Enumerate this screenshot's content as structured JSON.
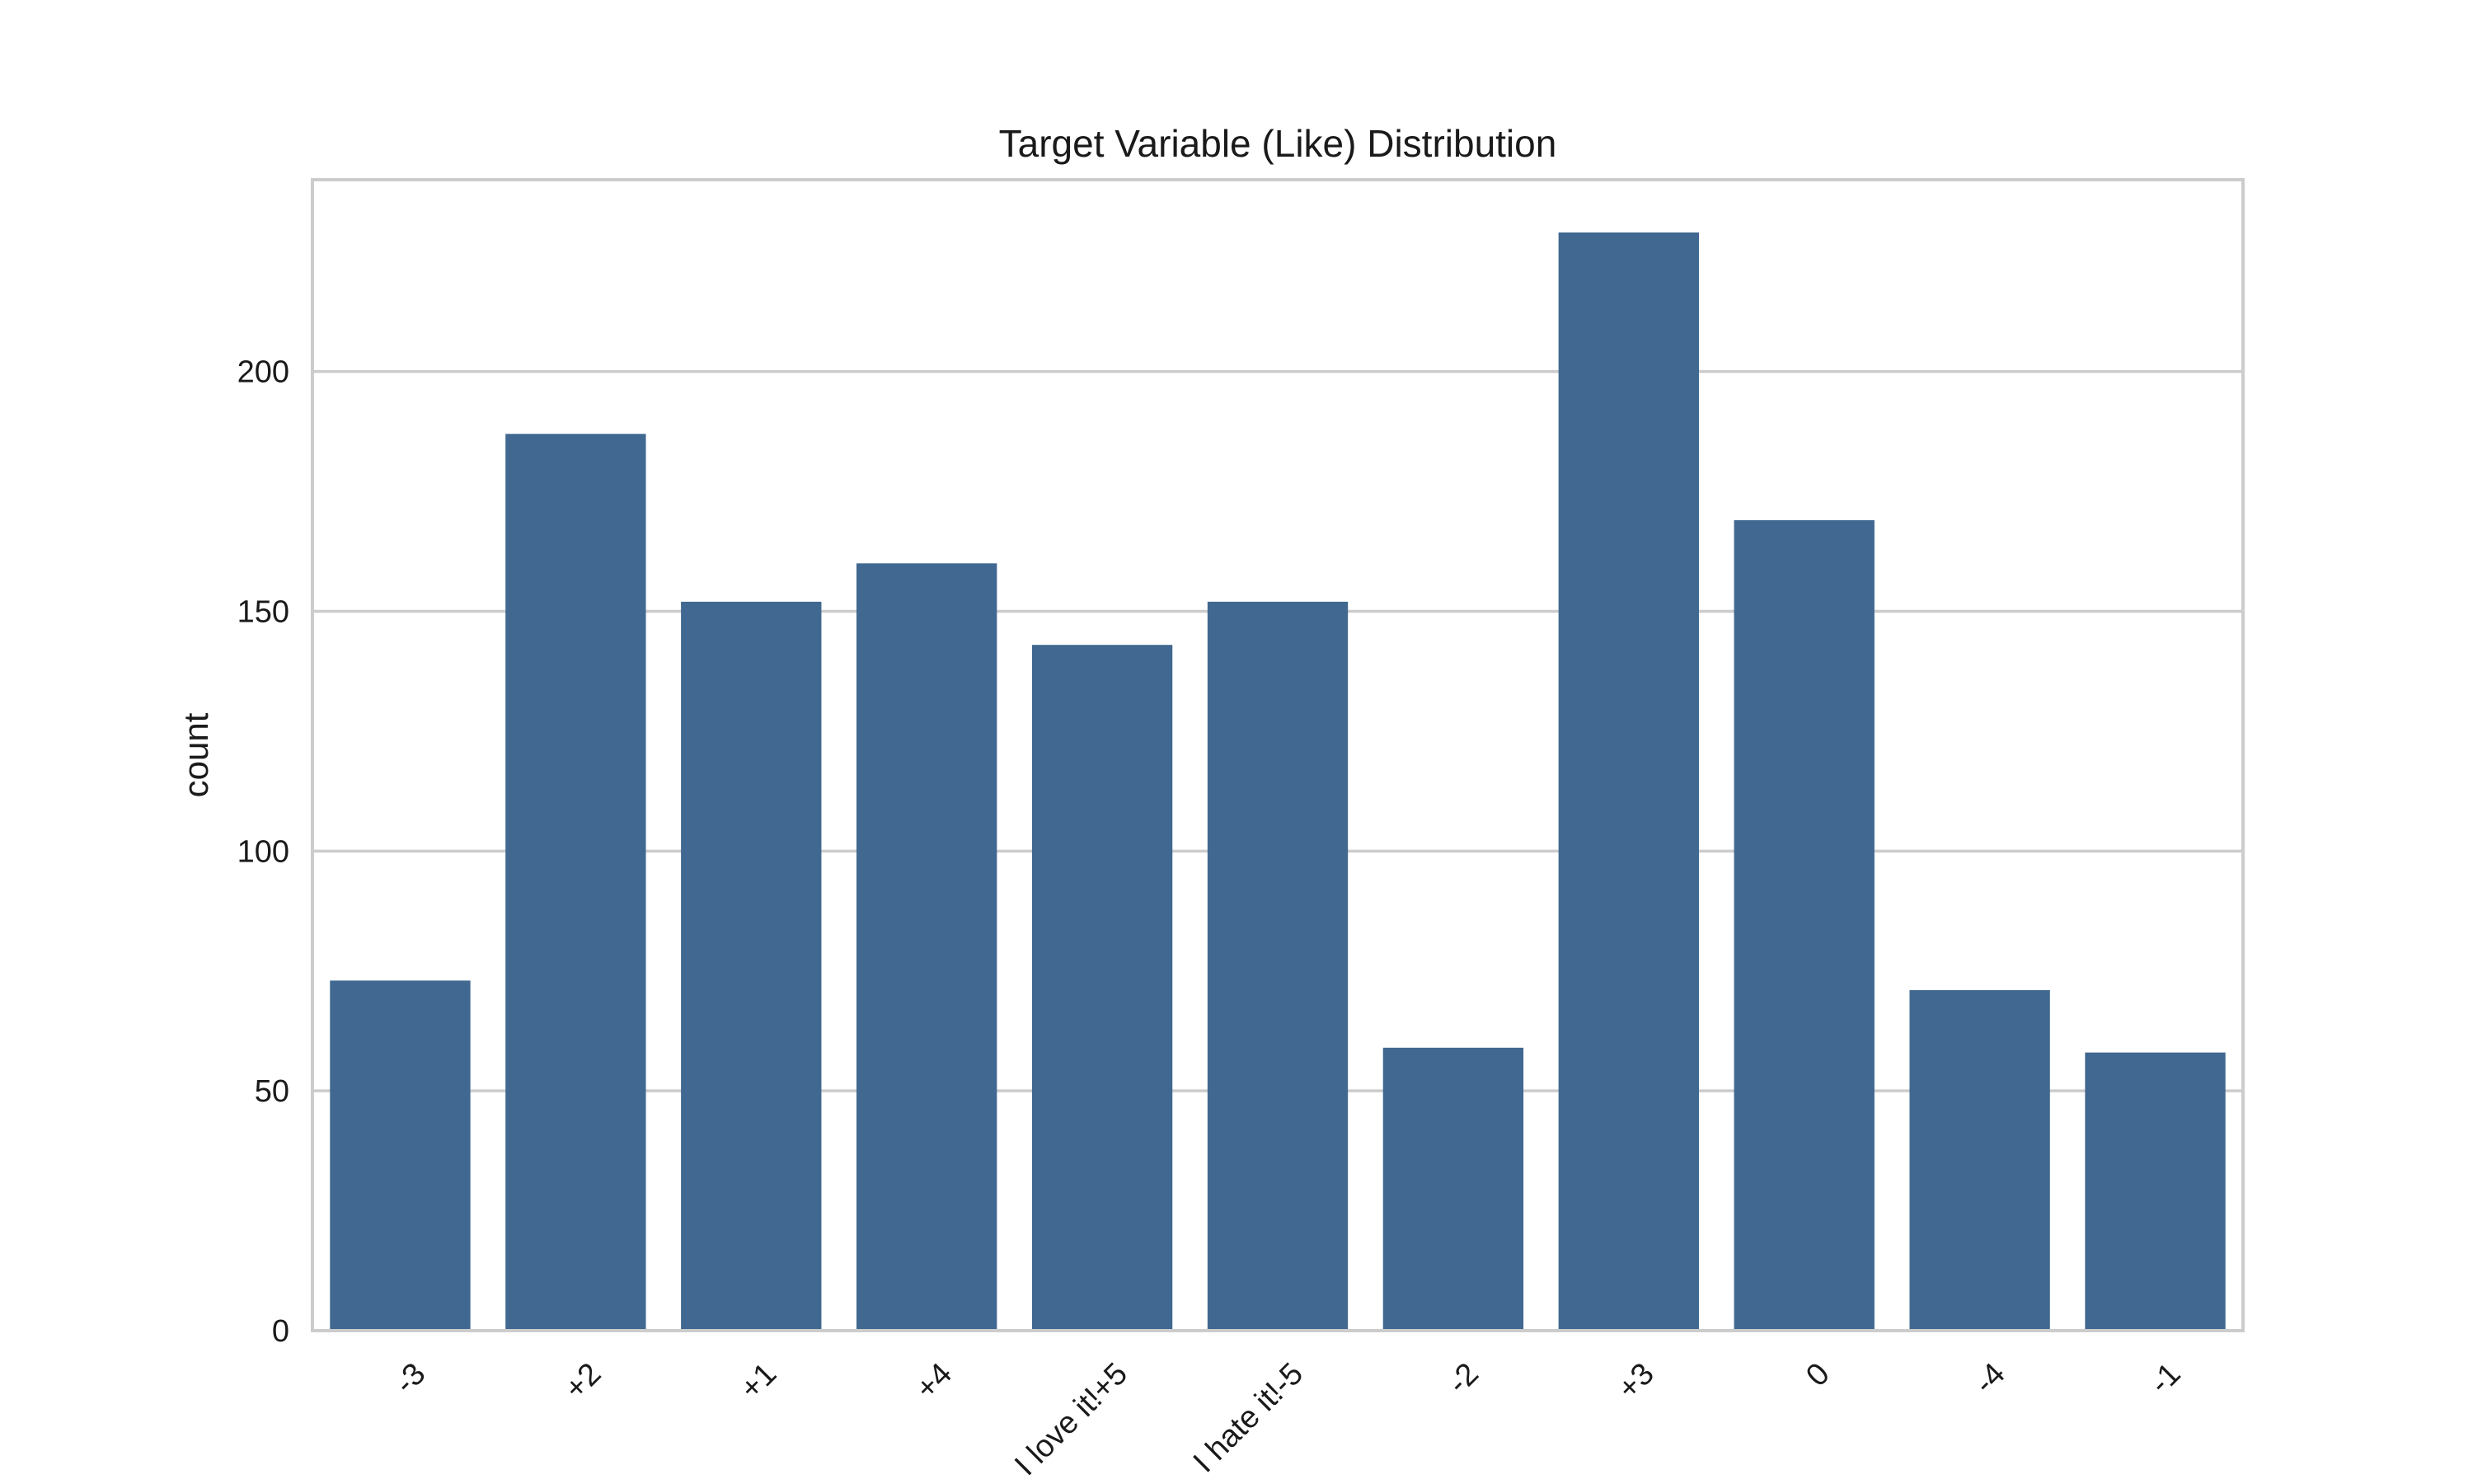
{
  "chart_data": {
    "type": "bar",
    "title": "Target Variable (Like) Distribution",
    "xlabel": "",
    "ylabel": "count",
    "categories": [
      "-3",
      "+2",
      "+1",
      "+4",
      "I love it!+5",
      "I hate it!-5",
      "-2",
      "+3",
      "0",
      "-4",
      "-1"
    ],
    "values": [
      73,
      187,
      152,
      160,
      143,
      152,
      59,
      229,
      169,
      71,
      58
    ],
    "ylim": [
      0,
      240
    ],
    "yticks": [
      0,
      50,
      100,
      150,
      200
    ],
    "grid": true,
    "x_tick_rotation_deg": 45,
    "bar_color": "#406890",
    "grid_color": "#cccccc",
    "frame_color": "#cccccc"
  }
}
